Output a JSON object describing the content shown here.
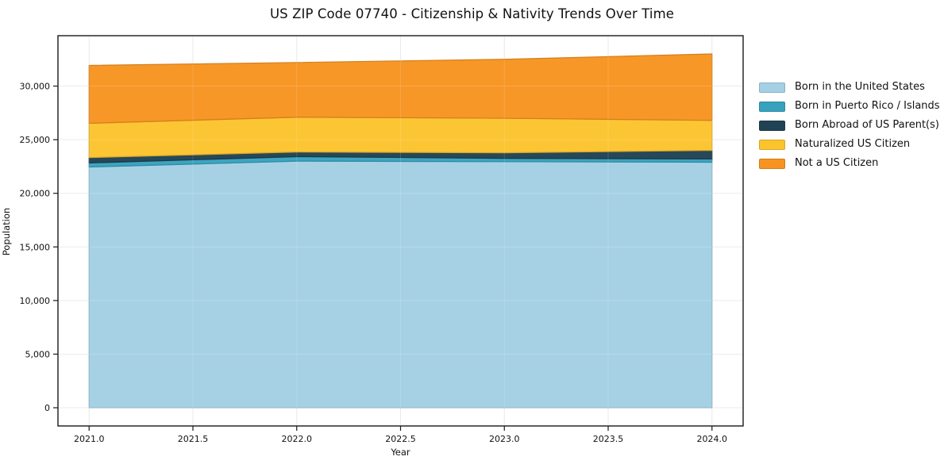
{
  "chart_data": {
    "type": "area",
    "stacked": true,
    "title": "US ZIP Code 07740 - Citizenship & Nativity Trends Over Time",
    "xlabel": "Year",
    "ylabel": "Population",
    "x": [
      2021,
      2022,
      2023,
      2024
    ],
    "series": [
      {
        "name": "Born in the United States",
        "color": "#a3d0e4",
        "values": [
          22450,
          23000,
          22950,
          22900
        ]
      },
      {
        "name": "Born in Puerto Rico / Islands",
        "color": "#36a2bd",
        "values": [
          380,
          420,
          310,
          300
        ]
      },
      {
        "name": "Born Abroad of US Parent(s)",
        "color": "#1f4254",
        "values": [
          500,
          430,
          520,
          800
        ]
      },
      {
        "name": "Naturalized US Citizen",
        "color": "#fcc32d",
        "values": [
          3200,
          3250,
          3220,
          2800
        ]
      },
      {
        "name": "Not a US Citizen",
        "color": "#f79420",
        "values": [
          5400,
          5100,
          5500,
          6200
        ]
      }
    ],
    "totals": [
      31930,
      32200,
      32500,
      33000
    ],
    "xlim": [
      2020.85,
      2024.15
    ],
    "ylim": [
      -1700,
      34700
    ],
    "xticks": [
      {
        "v": 2021.0,
        "label": "2021.0"
      },
      {
        "v": 2021.5,
        "label": "2021.5"
      },
      {
        "v": 2022.0,
        "label": "2022.0"
      },
      {
        "v": 2022.5,
        "label": "2022.5"
      },
      {
        "v": 2023.0,
        "label": "2023.0"
      },
      {
        "v": 2023.5,
        "label": "2023.5"
      },
      {
        "v": 2024.0,
        "label": "2024.0"
      }
    ],
    "yticks": [
      {
        "v": 0,
        "label": "0"
      },
      {
        "v": 5000,
        "label": "5,000"
      },
      {
        "v": 10000,
        "label": "10,000"
      },
      {
        "v": 15000,
        "label": "15,000"
      },
      {
        "v": 20000,
        "label": "20,000"
      },
      {
        "v": 25000,
        "label": "25,000"
      },
      {
        "v": 30000,
        "label": "30,000"
      }
    ],
    "grid": true,
    "legend_position": "right"
  }
}
